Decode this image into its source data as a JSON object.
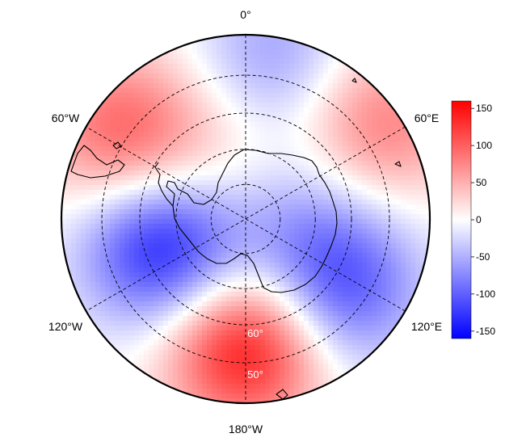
{
  "map": {
    "projection": "south-polar-stereographic",
    "lon_labels": {
      "top": "0°",
      "upper_left": "60°W",
      "upper_right": "60°E",
      "lower_left": "120°W",
      "lower_right": "120°E",
      "bottom": "180°W"
    },
    "lat_labels": [
      "60°",
      "50°"
    ],
    "graticule_latitudes": [
      -80,
      -70,
      -60,
      -50
    ],
    "graticule_meridians": [
      0,
      60,
      120
    ],
    "continent": "Antarctica",
    "anomaly_pattern_description": "wave-3 pattern",
    "anomaly_centers": [
      {
        "lon": 180,
        "lat": -54,
        "value": 150
      },
      {
        "lon": -110,
        "lat": -65,
        "value": -140
      },
      {
        "lon": 125,
        "lat": -57,
        "value": -105
      },
      {
        "lon": -55,
        "lat": -48,
        "value": 95
      },
      {
        "lon": 55,
        "lat": -45,
        "value": 80
      },
      {
        "lon": 10,
        "lat": -45,
        "value": -60
      },
      {
        "lon": 90,
        "lat": -75,
        "value": -40
      },
      {
        "lon": -25,
        "lat": -70,
        "value": 30
      }
    ]
  },
  "colorbar": {
    "ticks": [
      "150",
      "100",
      "50",
      "0",
      "-50",
      "-100",
      "-150"
    ],
    "vmin": -160,
    "vmax": 160,
    "colors": {
      "low": "#0000ff",
      "mid": "#ffffff",
      "high": "#ff0000"
    }
  }
}
